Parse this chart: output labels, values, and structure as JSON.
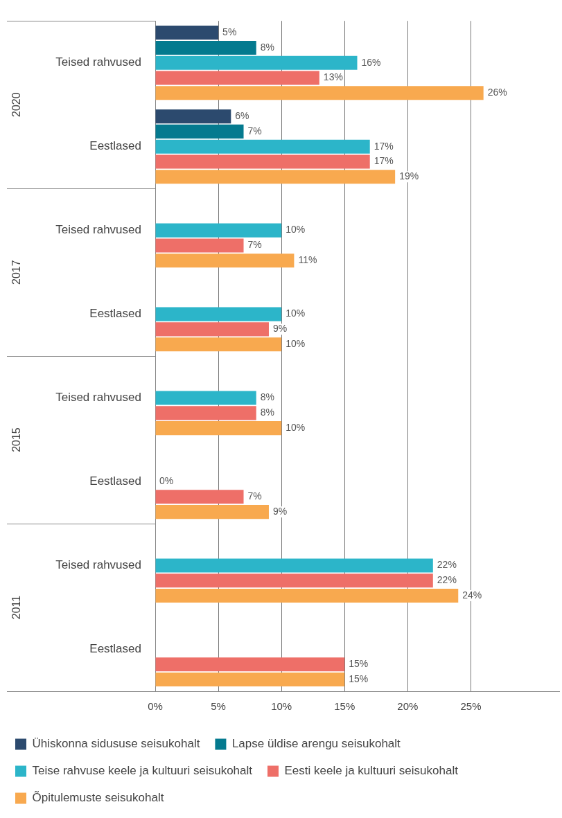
{
  "chart_data": {
    "type": "bar",
    "orientation": "horizontal",
    "categories": [
      "Teised rahvused",
      "Eestlased",
      "Teised rahvused",
      "Eestlased",
      "Teised rahvused",
      "Eestlased",
      "Teised rahvused",
      "Eestlased"
    ],
    "series": [
      {
        "name": "Ühiskonna sidususe seisukohalt",
        "color": "#2c4a6e",
        "values": [
          5,
          6,
          null,
          null,
          null,
          null,
          null,
          null
        ],
        "value_labels": [
          "5%",
          "6%",
          null,
          null,
          null,
          null,
          null,
          null
        ]
      },
      {
        "name": "Lapse üldise arengu seisukohalt",
        "color": "#047a8f",
        "values": [
          8,
          7,
          null,
          null,
          null,
          null,
          null,
          null
        ],
        "value_labels": [
          "8%",
          "7%",
          null,
          null,
          null,
          null,
          null,
          null
        ]
      },
      {
        "name": "Teise rahvuse keele ja kultuuri seisukohalt",
        "color": "#2cb5c9",
        "values": [
          16,
          17,
          10,
          10,
          8,
          0,
          22,
          null
        ],
        "value_labels": [
          "16%",
          "17%",
          "10%",
          "10%",
          "8%",
          "0%",
          "22%",
          null
        ]
      },
      {
        "name": "Eesti keele ja kultuuri seisukohalt",
        "color": "#ee6f68",
        "values": [
          13,
          17,
          7,
          9,
          8,
          7,
          22,
          15
        ],
        "value_labels": [
          "13%",
          "17%",
          "7%",
          "9%",
          "8%",
          "7%",
          "22%",
          "15%"
        ]
      },
      {
        "name": "Õpitulemuste seisukohalt",
        "color": "#f8a94f",
        "values": [
          26,
          19,
          11,
          10,
          10,
          9,
          24,
          15
        ],
        "value_labels": [
          "26%",
          "19%",
          "11%",
          "10%",
          "10%",
          "9%",
          "24%",
          "15%"
        ]
      }
    ],
    "xlim": [
      0,
      32
    ],
    "xticks": [
      {
        "value": 0,
        "label": "0%"
      },
      {
        "value": 5,
        "label": "5%"
      },
      {
        "value": 10,
        "label": "10%"
      },
      {
        "value": 15,
        "label": "15%"
      },
      {
        "value": 20,
        "label": "20%"
      },
      {
        "value": 25,
        "label": "25%"
      }
    ],
    "annotations": [
      "2020",
      "2017",
      "2015",
      "2011"
    ],
    "grid": "x",
    "legend": "bottom"
  }
}
